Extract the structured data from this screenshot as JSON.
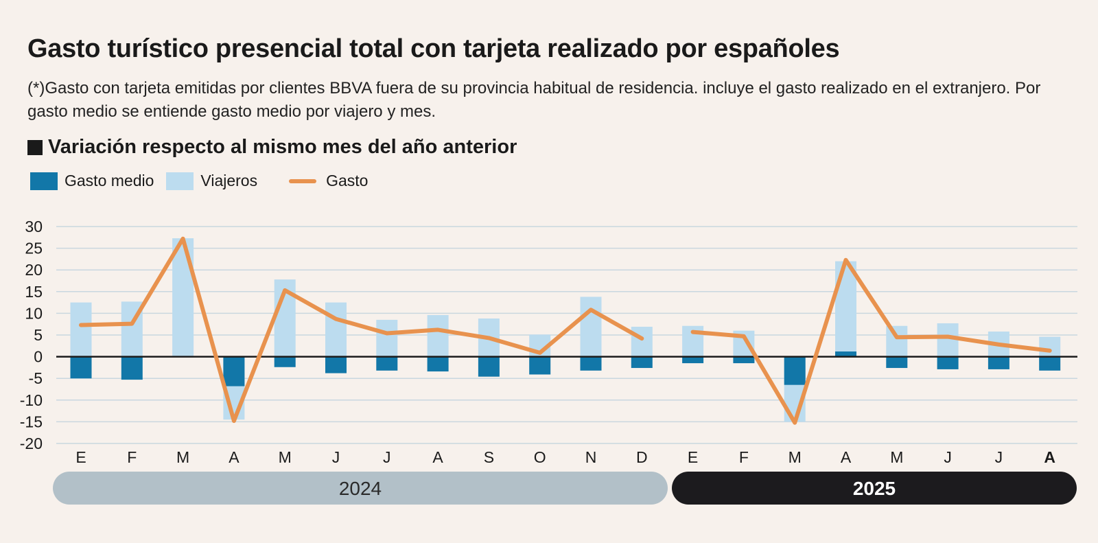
{
  "header": {
    "title": "Gasto turístico presencial total con tarjeta realizado por españoles",
    "subtitle": "(*)Gasto con tarjeta emitidas por clientes BBVA fuera de su provincia habitual de residencia. incluye el gasto realizado en el extranjero. Por gasto medio se entiende gasto medio por viajero y mes.",
    "section": "Variación respecto al mismo mes del año anterior"
  },
  "legend": {
    "gasto_medio": "Gasto medio",
    "viajeros": "Viajeros",
    "gasto": "Gasto"
  },
  "colors": {
    "gasto_medio": "#1277a8",
    "viajeros": "#bcdcef",
    "gasto": "#e8924e",
    "year_2024_bg": "#b2c0c8",
    "year_2025_bg": "#1c1b1e"
  },
  "chart_data": {
    "type": "bar",
    "categories": [
      "E",
      "F",
      "M",
      "A",
      "M",
      "J",
      "J",
      "A",
      "S",
      "O",
      "N",
      "D",
      "E",
      "F",
      "M",
      "A",
      "M",
      "J",
      "J",
      "A"
    ],
    "bold_category_index": 19,
    "series": [
      {
        "name": "Gasto medio",
        "kind": "bar",
        "values": [
          -5,
          -5.3,
          0,
          -6.8,
          -2.4,
          -3.8,
          -3.2,
          -3.4,
          -4.6,
          -4.1,
          -3.2,
          -2.6,
          -1.5,
          -1.5,
          -6.5,
          1.2,
          -2.6,
          -2.9,
          -2.9,
          -3.2
        ]
      },
      {
        "name": "Viajeros",
        "kind": "bar",
        "values": [
          12.5,
          12.7,
          27.3,
          -14.5,
          17.8,
          12.5,
          8.5,
          9.6,
          8.8,
          5.1,
          13.8,
          6.9,
          7.1,
          6.0,
          -15,
          22.0,
          7.1,
          7.7,
          5.8,
          4.6
        ]
      },
      {
        "name": "Gasto",
        "kind": "line",
        "values": [
          7.3,
          7.6,
          27.2,
          -14.8,
          15.3,
          8.7,
          5.4,
          6.2,
          4.3,
          0.9,
          10.8,
          4.2,
          5.7,
          4.7,
          -15.2,
          22.3,
          4.5,
          4.6,
          2.8,
          1.4
        ]
      }
    ],
    "ylim": [
      -20,
      30
    ],
    "yticks": [
      30,
      25,
      20,
      15,
      10,
      5,
      0,
      -5,
      -10,
      -15,
      -20
    ],
    "grid": true,
    "years": [
      {
        "label": "2024",
        "start_index": 0,
        "end_index": 11
      },
      {
        "label": "2025",
        "start_index": 12,
        "end_index": 19
      }
    ],
    "line_gaps_after_index": [
      11
    ]
  }
}
